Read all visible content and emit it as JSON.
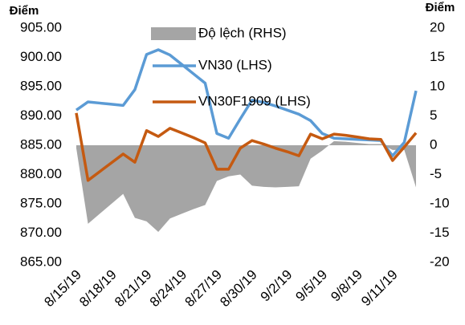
{
  "chart_data": {
    "type": "line",
    "y_label": "Điểm",
    "y2_label": "Điểm",
    "categories": [
      "8/15/19",
      null,
      null,
      "8/18/19",
      null,
      null,
      "8/21/19",
      null,
      null,
      "8/24/19",
      null,
      null,
      "8/27/19",
      null,
      null,
      "8/30/19",
      null,
      null,
      "9/2/19",
      null,
      null,
      "9/5/19",
      null,
      null,
      "9/8/19",
      null,
      null,
      "9/11/19",
      null,
      null
    ],
    "ylim": [
      865,
      905
    ],
    "yticks": [
      {
        "value": 865,
        "label": "865.00"
      },
      {
        "value": 870,
        "label": "870.00"
      },
      {
        "value": 875,
        "label": "875.00"
      },
      {
        "value": 880,
        "label": "880.00"
      },
      {
        "value": 885,
        "label": "885.00"
      },
      {
        "value": 890,
        "label": "890.00"
      },
      {
        "value": 895,
        "label": "895.00"
      },
      {
        "value": 900,
        "label": "900.00"
      },
      {
        "value": 905,
        "label": "905.00"
      }
    ],
    "y2lim": [
      -20,
      20
    ],
    "y2ticks": [
      -20,
      -15,
      -10,
      -5,
      0,
      5,
      10,
      15,
      20
    ],
    "series": [
      {
        "name": "Độ lệch (RHS)",
        "type": "area",
        "axis": "y2",
        "color": "#a5a5a5",
        "values": [
          -0.5,
          -13.4,
          -11.7,
          -10,
          -8.3,
          -12.4,
          -13,
          -14.8,
          -12.5,
          -11.7,
          -10.9,
          -10.2,
          -6.1,
          -5.3,
          -5,
          -6.9,
          -7.1,
          -7.2,
          -7.1,
          -7,
          -2.3,
          -0.9,
          0.7,
          0.6,
          0.4,
          0.2,
          0.2,
          -0.8,
          -0.8,
          -7.2
        ]
      },
      {
        "name": "VN30 (LHS)",
        "type": "line",
        "color": "#5b9bd5",
        "values": [
          891,
          892.4,
          892.2,
          892,
          891.8,
          894.5,
          900.5,
          901.3,
          900.4,
          898.8,
          897.2,
          895.6,
          887,
          886.2,
          889.5,
          892.7,
          892.3,
          891.7,
          891,
          890.3,
          889.2,
          887,
          886.2,
          886.1,
          886,
          885.9,
          885.8,
          883.2,
          885.5,
          894.3
        ]
      },
      {
        "name": "VN30F1909 (LHS)",
        "type": "line",
        "color": "#c55a11",
        "values": [
          890.5,
          879,
          880.5,
          882,
          883.5,
          882.1,
          887.5,
          886.5,
          887.9,
          887.1,
          886.3,
          885.4,
          880.9,
          880.9,
          884.5,
          885.8,
          885.2,
          884.5,
          883.9,
          883.2,
          886.9,
          886.1,
          886.9,
          886.7,
          886.4,
          886.1,
          886,
          882.4,
          884.7,
          887.1
        ]
      }
    ]
  }
}
